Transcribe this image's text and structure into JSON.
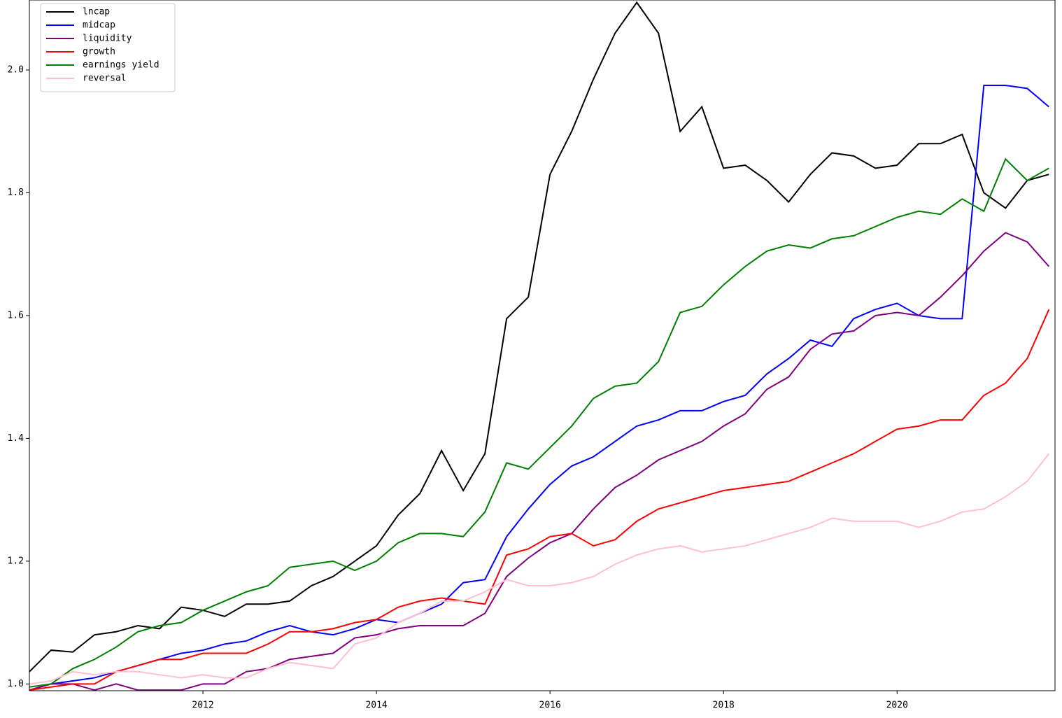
{
  "chart_data": {
    "type": "line",
    "legend": "upper left",
    "xlim": [
      2010,
      2021.82
    ],
    "xticks": [
      2012,
      2014,
      2016,
      2018,
      2020
    ],
    "ylim": [
      0.989,
      2.114
    ],
    "yticks": [
      {
        "value": 1,
        "label": "1.0"
      },
      1.2,
      1.4,
      1.6,
      1.8,
      {
        "value": 2,
        "label": "2.0"
      }
    ],
    "x": [
      2010,
      2010.25,
      2010.5,
      2010.75,
      2011,
      2011.25,
      2011.5,
      2011.75,
      2012,
      2012.25,
      2012.5,
      2012.75,
      2013,
      2013.25,
      2013.5,
      2013.75,
      2014,
      2014.25,
      2014.5,
      2014.75,
      2015,
      2015.25,
      2015.5,
      2015.75,
      2016,
      2016.25,
      2016.5,
      2016.75,
      2017,
      2017.25,
      2017.5,
      2017.75,
      2018,
      2018.25,
      2018.5,
      2018.75,
      2019,
      2019.25,
      2019.5,
      2019.75,
      2020,
      2020.25,
      2020.5,
      2020.75,
      2021,
      2021.25,
      2021.5,
      2021.75
    ],
    "series": [
      {
        "name": "lncap",
        "color": "#000000",
        "values": [
          1.02,
          1.055,
          1.052,
          1.08,
          1.085,
          1.095,
          1.09,
          1.125,
          1.12,
          1.11,
          1.13,
          1.13,
          1.135,
          1.16,
          1.175,
          1.2,
          1.225,
          1.275,
          1.31,
          1.38,
          1.315,
          1.375,
          1.595,
          1.63,
          1.83,
          1.9,
          1.985,
          2.06,
          2.11,
          2.06,
          1.9,
          1.94,
          1.84,
          1.845,
          1.82,
          1.785,
          1.83,
          1.865,
          1.86,
          1.84,
          1.845,
          1.88,
          1.88,
          1.895,
          1.8,
          1.775,
          1.82,
          1.83
        ]
      },
      {
        "name": "midcap",
        "color": "#0000ff",
        "values": [
          0.99,
          1.0,
          1.005,
          1.01,
          1.02,
          1.03,
          1.04,
          1.05,
          1.055,
          1.065,
          1.07,
          1.085,
          1.095,
          1.085,
          1.08,
          1.09,
          1.105,
          1.1,
          1.115,
          1.13,
          1.165,
          1.17,
          1.24,
          1.285,
          1.325,
          1.355,
          1.37,
          1.395,
          1.42,
          1.43,
          1.445,
          1.445,
          1.46,
          1.47,
          1.505,
          1.53,
          1.56,
          1.55,
          1.595,
          1.61,
          1.62,
          1.6,
          1.595,
          1.595,
          1.975,
          1.975,
          1.97,
          1.94
        ]
      },
      {
        "name": "liquidity",
        "color": "#800080",
        "values": [
          0.99,
          1.0,
          1.0,
          0.99,
          1.0,
          0.99,
          0.99,
          0.99,
          1.0,
          1.0,
          1.02,
          1.025,
          1.04,
          1.045,
          1.05,
          1.075,
          1.08,
          1.09,
          1.095,
          1.095,
          1.095,
          1.115,
          1.175,
          1.205,
          1.23,
          1.245,
          1.285,
          1.32,
          1.34,
          1.365,
          1.38,
          1.395,
          1.42,
          1.44,
          1.48,
          1.5,
          1.545,
          1.57,
          1.575,
          1.6,
          1.605,
          1.6,
          1.63,
          1.665,
          1.705,
          1.735,
          1.72,
          1.68
        ]
      },
      {
        "name": "growth",
        "color": "#ff0000",
        "values": [
          0.99,
          0.995,
          1.0,
          1.0,
          1.02,
          1.03,
          1.04,
          1.04,
          1.05,
          1.05,
          1.05,
          1.065,
          1.085,
          1.085,
          1.09,
          1.1,
          1.105,
          1.125,
          1.135,
          1.14,
          1.135,
          1.13,
          1.21,
          1.22,
          1.24,
          1.245,
          1.225,
          1.235,
          1.265,
          1.285,
          1.295,
          1.305,
          1.315,
          1.32,
          1.325,
          1.33,
          1.345,
          1.36,
          1.375,
          1.395,
          1.415,
          1.42,
          1.43,
          1.43,
          1.47,
          1.49,
          1.53,
          1.61
        ]
      },
      {
        "name": "earnings yield",
        "color": "#008000",
        "values": [
          0.995,
          1.0,
          1.025,
          1.04,
          1.06,
          1.085,
          1.095,
          1.1,
          1.12,
          1.135,
          1.15,
          1.16,
          1.19,
          1.195,
          1.2,
          1.185,
          1.2,
          1.23,
          1.245,
          1.245,
          1.24,
          1.28,
          1.36,
          1.35,
          1.385,
          1.42,
          1.465,
          1.485,
          1.49,
          1.525,
          1.605,
          1.615,
          1.65,
          1.68,
          1.705,
          1.715,
          1.71,
          1.725,
          1.73,
          1.745,
          1.76,
          1.77,
          1.765,
          1.79,
          1.77,
          1.855,
          1.82,
          1.84
        ]
      },
      {
        "name": "reversal",
        "color": "#ffc0cb",
        "values": [
          1.0,
          1.005,
          1.02,
          1.015,
          1.02,
          1.02,
          1.015,
          1.01,
          1.015,
          1.01,
          1.01,
          1.025,
          1.035,
          1.03,
          1.025,
          1.065,
          1.075,
          1.1,
          1.115,
          1.135,
          1.135,
          1.15,
          1.17,
          1.16,
          1.16,
          1.165,
          1.175,
          1.195,
          1.21,
          1.22,
          1.225,
          1.215,
          1.22,
          1.225,
          1.235,
          1.245,
          1.255,
          1.27,
          1.265,
          1.265,
          1.265,
          1.255,
          1.265,
          1.28,
          1.285,
          1.305,
          1.33,
          1.375
        ]
      }
    ]
  }
}
